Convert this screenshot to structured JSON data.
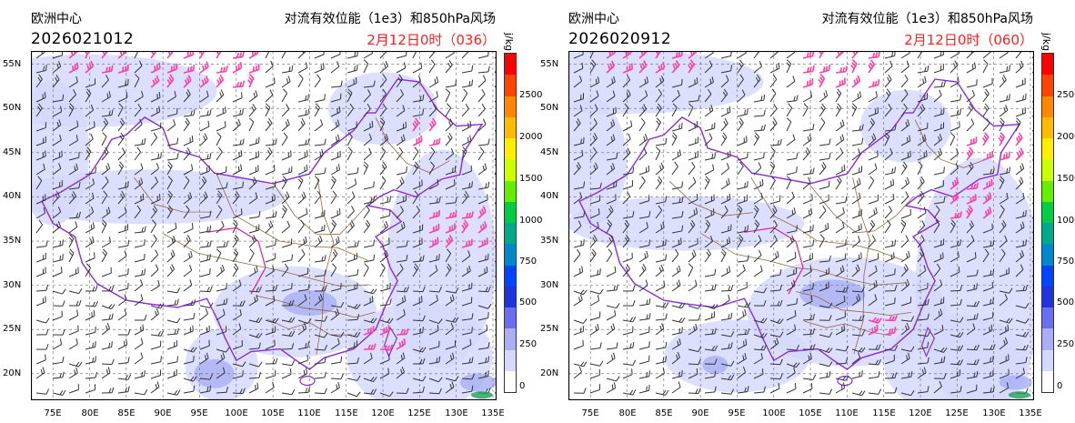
{
  "panels": [
    {
      "org": "欧洲中心",
      "run": "2026021012",
      "title": "对流有效位能（1e3）和850hPa风场",
      "valid": "2月12日0时（036）",
      "unit": "j/kg",
      "colorbar_labels": [
        "2500",
        "2000",
        "1500",
        "1000",
        "750",
        "500",
        "250",
        "0"
      ],
      "lat_labels": [
        "55N",
        "50N",
        "45N",
        "40N",
        "35N",
        "30N",
        "25N",
        "20N"
      ],
      "lon_labels": [
        "75E",
        "80E",
        "85E",
        "90E",
        "95E",
        "100E",
        "105E",
        "110E",
        "115E",
        "120E",
        "125E",
        "130E",
        "135E"
      ]
    },
    {
      "org": "欧洲中心",
      "run": "2026020912",
      "title": "对流有效位能（1e3）和850hPa风场",
      "valid": "2月12日0时（060）",
      "unit": "j/kg",
      "colorbar_labels": [
        "2500",
        "2000",
        "1500",
        "1000",
        "750",
        "500",
        "250",
        "0"
      ],
      "lat_labels": [
        "55N",
        "50N",
        "45N",
        "40N",
        "35N",
        "30N",
        "25N",
        "20N"
      ],
      "lon_labels": [
        "75E",
        "80E",
        "85E",
        "90E",
        "95E",
        "100E",
        "105E",
        "110E",
        "115E",
        "120E",
        "125E",
        "130E",
        "135E"
      ]
    }
  ],
  "colors": {
    "cape_light": "#d6d9ff",
    "cape_mid": "#a9aef5",
    "border": "#8a2be2",
    "province": "#8b5a2b",
    "strong_wind": "#ff3fa4",
    "wind": "#333333",
    "valid_text": "#ff2020"
  },
  "colorbar": [
    "#ff0000",
    "#ff4400",
    "#ff8800",
    "#ffbb00",
    "#ffee00",
    "#ccff00",
    "#66ee00",
    "#00cc44",
    "#00aa88",
    "#0088cc",
    "#0044ff",
    "#2233dd",
    "#6a6ef0",
    "#a9aef5",
    "#d6d9ff",
    "#ffffff"
  ]
}
